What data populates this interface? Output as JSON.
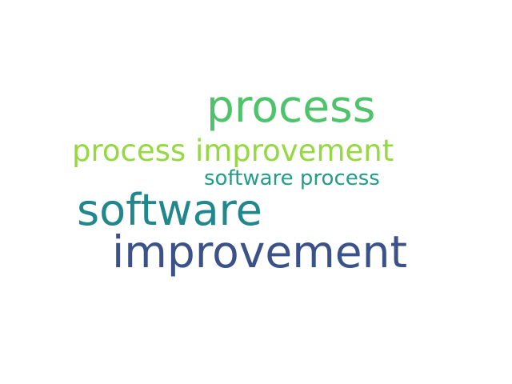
{
  "words": [
    {
      "text": "process",
      "color": "#4fc36b"
    },
    {
      "text": "process improvement",
      "color": "#95d841"
    },
    {
      "text": "software process",
      "color": "#1f9e89"
    },
    {
      "text": "software",
      "color": "#20878d"
    },
    {
      "text": "improvement",
      "color": "#3b5289"
    }
  ]
}
